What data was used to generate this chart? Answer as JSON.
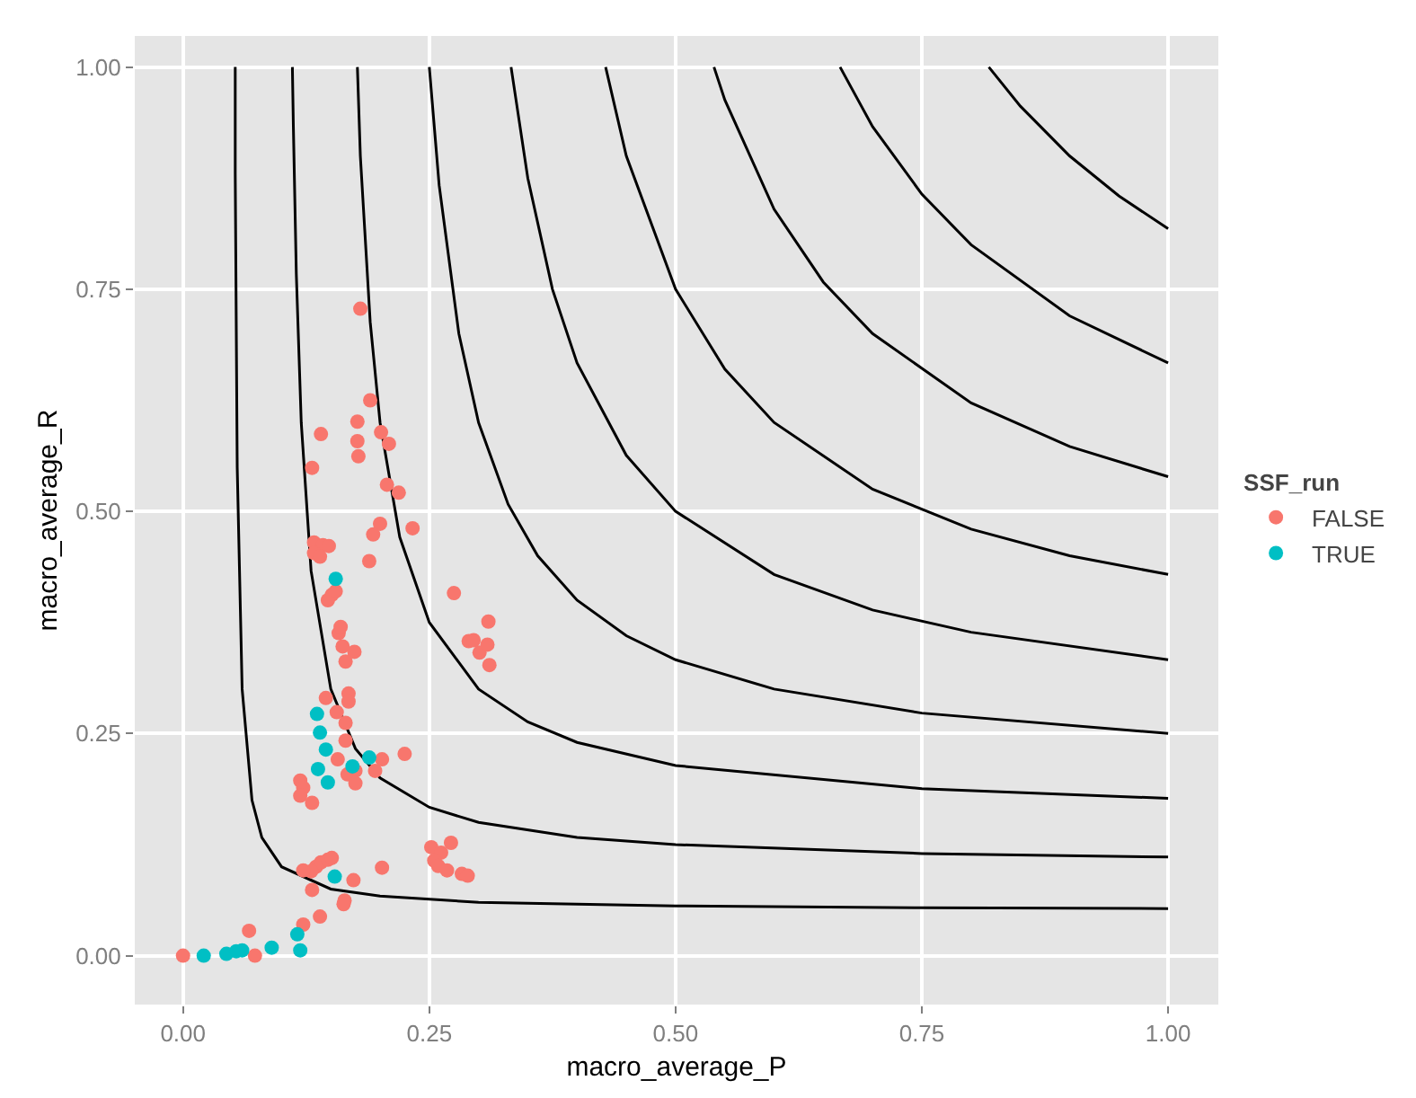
{
  "chart_data": {
    "type": "scatter",
    "xlabel": "macro_average_P",
    "ylabel": "macro_average_R",
    "legend_title": "SSF_run",
    "xlim": [
      -0.049,
      1.051
    ],
    "ylim": [
      -0.055,
      1.035
    ],
    "xticks": [
      {
        "value": 0,
        "label": "0.00"
      },
      {
        "value": 0.25,
        "label": "0.25"
      },
      {
        "value": 0.5,
        "label": "0.50"
      },
      {
        "value": 0.75,
        "label": "0.75"
      },
      {
        "value": 1,
        "label": "1.00"
      }
    ],
    "yticks": [
      {
        "value": 0,
        "label": "0.00"
      },
      {
        "value": 0.25,
        "label": "0.25"
      },
      {
        "value": 0.5,
        "label": "0.50"
      },
      {
        "value": 0.75,
        "label": "0.75"
      },
      {
        "value": 1,
        "label": "1.00"
      }
    ],
    "grid": true,
    "legend": "right",
    "marker": "circle",
    "series": [
      {
        "name": "FALSE",
        "color": "#f8766d",
        "x": [
          0.18,
          0.19,
          0.177,
          0.14,
          0.201,
          0.177,
          0.209,
          0.178,
          0.131,
          0.207,
          0.219,
          0.2,
          0.193,
          0.233,
          0.189,
          0.133,
          0.142,
          0.148,
          0.133,
          0.139,
          0.151,
          0.147,
          0.155,
          0.158,
          0.16,
          0.162,
          0.174,
          0.165,
          0.145,
          0.168,
          0.156,
          0.168,
          0.165,
          0.165,
          0.157,
          0.167,
          0.175,
          0.175,
          0.195,
          0.202,
          0.225,
          0.119,
          0.122,
          0.119,
          0.131,
          0.135,
          0.14,
          0.147,
          0.151,
          0.13,
          0.122,
          0.173,
          0.202,
          0.131,
          0.164,
          0.163,
          0.139,
          0.122,
          0.067,
          0.0,
          0.073,
          0.275,
          0.31,
          0.29,
          0.295,
          0.301,
          0.309,
          0.311,
          0.252,
          0.262,
          0.272,
          0.255,
          0.259,
          0.268,
          0.283,
          0.289
        ],
        "values": [
          0.728,
          0.625,
          0.601,
          0.587,
          0.589,
          0.579,
          0.576,
          0.562,
          0.549,
          0.53,
          0.521,
          0.486,
          0.474,
          0.481,
          0.444,
          0.465,
          0.462,
          0.461,
          0.453,
          0.449,
          0.406,
          0.4,
          0.41,
          0.363,
          0.37,
          0.348,
          0.342,
          0.331,
          0.29,
          0.295,
          0.274,
          0.286,
          0.262,
          0.242,
          0.221,
          0.204,
          0.208,
          0.194,
          0.208,
          0.221,
          0.227,
          0.197,
          0.189,
          0.18,
          0.172,
          0.1,
          0.105,
          0.108,
          0.11,
          0.095,
          0.096,
          0.085,
          0.099,
          0.074,
          0.062,
          0.058,
          0.044,
          0.035,
          0.028,
          0.0,
          0.0,
          0.408,
          0.376,
          0.354,
          0.355,
          0.341,
          0.35,
          0.327,
          0.122,
          0.116,
          0.127,
          0.107,
          0.101,
          0.096,
          0.092,
          0.09
        ]
      },
      {
        "name": "TRUE",
        "color": "#00bfc4",
        "x": [
          0.155,
          0.136,
          0.139,
          0.145,
          0.137,
          0.147,
          0.172,
          0.189,
          0.154,
          0.021,
          0.044,
          0.054,
          0.06,
          0.09,
          0.116,
          0.119
        ],
        "values": [
          0.424,
          0.272,
          0.251,
          0.232,
          0.21,
          0.195,
          0.213,
          0.223,
          0.089,
          0.0,
          0.002,
          0.005,
          0.006,
          0.009,
          0.024,
          0.006
        ]
      },
      {
        "type": "line",
        "marker": "none",
        "color": "#000000",
        "x": [
          0.053,
          0.053,
          0.055,
          0.06,
          0.07,
          0.08,
          0.1,
          0.15,
          0.2,
          0.3,
          0.5,
          0.75,
          1
        ],
        "values": [
          1,
          0.88,
          0.55,
          0.3,
          0.175,
          0.133,
          0.1,
          0.075,
          0.067,
          0.06,
          0.056,
          0.054,
          0.053
        ]
      },
      {
        "type": "line",
        "marker": "none",
        "color": "#000000",
        "x": [
          0.111,
          0.112,
          0.115,
          0.12,
          0.13,
          0.15,
          0.175,
          0.2,
          0.25,
          0.3,
          0.4,
          0.5,
          0.75,
          1
        ],
        "values": [
          1,
          0.933,
          0.767,
          0.6,
          0.433,
          0.3,
          0.233,
          0.2,
          0.167,
          0.15,
          0.133,
          0.125,
          0.115,
          0.111
        ]
      },
      {
        "type": "line",
        "marker": "none",
        "color": "#000000",
        "x": [
          0.177,
          0.18,
          0.19,
          0.2,
          0.22,
          0.25,
          0.3,
          0.35,
          0.4,
          0.5,
          0.75,
          1
        ],
        "values": [
          1,
          0.9,
          0.713,
          0.6,
          0.471,
          0.375,
          0.3,
          0.263,
          0.24,
          0.214,
          0.188,
          0.177
        ]
      },
      {
        "type": "line",
        "marker": "none",
        "color": "#000000",
        "x": [
          0.25,
          0.26,
          0.28,
          0.3,
          0.33,
          0.36,
          0.4,
          0.45,
          0.5,
          0.6,
          0.75,
          1
        ],
        "values": [
          1,
          0.867,
          0.7,
          0.6,
          0.508,
          0.45,
          0.4,
          0.36,
          0.333,
          0.3,
          0.273,
          0.25
        ]
      },
      {
        "type": "line",
        "marker": "none",
        "color": "#000000",
        "x": [
          0.333,
          0.35,
          0.375,
          0.4,
          0.45,
          0.5,
          0.6,
          0.7,
          0.8,
          1
        ],
        "values": [
          1,
          0.875,
          0.75,
          0.667,
          0.563,
          0.5,
          0.429,
          0.389,
          0.364,
          0.333
        ]
      },
      {
        "type": "line",
        "marker": "none",
        "color": "#000000",
        "x": [
          0.429,
          0.45,
          0.5,
          0.55,
          0.6,
          0.7,
          0.8,
          0.9,
          1
        ],
        "values": [
          1,
          0.9,
          0.75,
          0.66,
          0.6,
          0.525,
          0.48,
          0.45,
          0.429
        ]
      },
      {
        "type": "line",
        "marker": "none",
        "color": "#000000",
        "x": [
          0.539,
          0.55,
          0.6,
          0.65,
          0.7,
          0.8,
          0.9,
          1
        ],
        "values": [
          1,
          0.963,
          0.84,
          0.758,
          0.7,
          0.622,
          0.573,
          0.539
        ]
      },
      {
        "type": "line",
        "marker": "none",
        "color": "#000000",
        "x": [
          0.667,
          0.7,
          0.75,
          0.8,
          0.9,
          1
        ],
        "values": [
          1,
          0.933,
          0.857,
          0.8,
          0.72,
          0.667
        ]
      },
      {
        "type": "line",
        "marker": "none",
        "color": "#000000",
        "x": [
          0.818,
          0.85,
          0.9,
          0.95,
          1
        ],
        "values": [
          1,
          0.956,
          0.9,
          0.855,
          0.818
        ]
      }
    ]
  }
}
